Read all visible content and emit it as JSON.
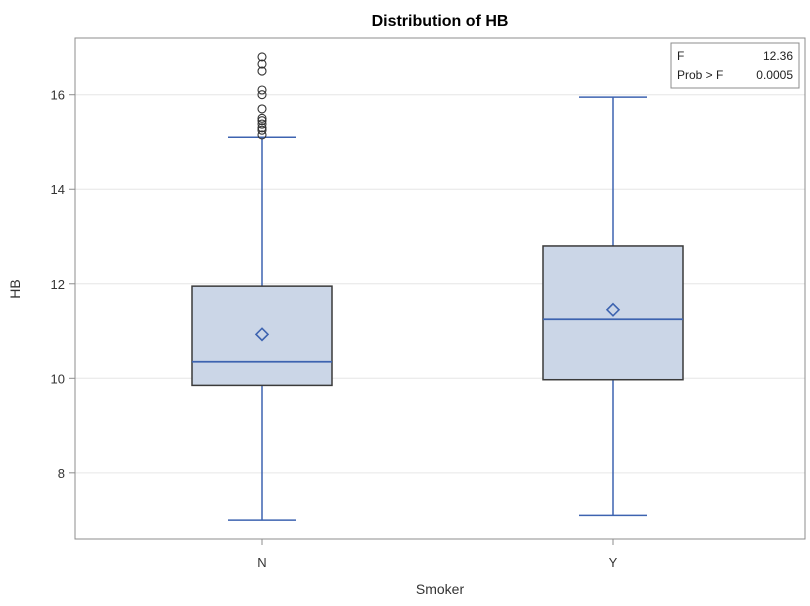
{
  "chart_data": {
    "type": "box",
    "title": "Distribution of HB",
    "xlabel": "Smoker",
    "ylabel": "HB",
    "ylim": [
      6.6,
      17.2
    ],
    "yticks": [
      8,
      10,
      12,
      14,
      16
    ],
    "grid": true,
    "categories": [
      "N",
      "Y"
    ],
    "boxes": [
      {
        "category": "N",
        "min": 7.0,
        "q1": 9.85,
        "median": 10.35,
        "q3": 11.95,
        "max": 15.1,
        "mean": 10.93,
        "outliers": [
          15.15,
          15.25,
          15.3,
          15.38,
          15.45,
          15.5,
          15.7,
          16.0,
          16.1,
          16.5,
          16.65,
          16.8
        ]
      },
      {
        "category": "Y",
        "min": 7.1,
        "q1": 9.97,
        "median": 11.25,
        "q3": 12.8,
        "max": 15.95,
        "mean": 11.45,
        "outliers": []
      }
    ],
    "stats_inset": {
      "placement": "top-right",
      "rows": [
        {
          "label": "F",
          "value": "12.36"
        },
        {
          "label": "Prob > F",
          "value": "0.0005"
        }
      ]
    },
    "colors": {
      "box_fill": "#cbd6e7",
      "box_edge": "#3a3a3a",
      "whisker": "#3d63b0",
      "mean_marker": "#3d63b0",
      "outlier": "#333333",
      "grid": "#e6e6e6",
      "frame": "#8c8c8c"
    }
  }
}
